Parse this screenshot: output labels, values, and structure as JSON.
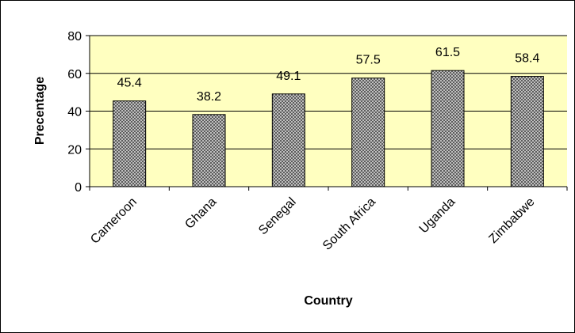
{
  "chart_data": {
    "type": "bar",
    "categories": [
      "Cameroon",
      "Ghana",
      "Senegal",
      "South Africa",
      "Uganda",
      "Zimbabwe"
    ],
    "values": [
      45.4,
      38.2,
      49.1,
      57.5,
      61.5,
      58.4
    ],
    "data_labels": [
      "45.4",
      "38.2",
      "49.1",
      "57.5",
      "61.5",
      "58.4"
    ],
    "title": "",
    "xlabel": "Country",
    "ylabel": "Precentage",
    "ylim": [
      0,
      80
    ],
    "yticks": [
      "0",
      "20",
      "40",
      "60",
      "80"
    ],
    "grid": true,
    "legend": "none",
    "colors": {
      "plot_background": "#ffffc0",
      "bar_fill": "crosshatch-gray",
      "bar_outline": "#000000",
      "gridline": "#000000"
    }
  }
}
